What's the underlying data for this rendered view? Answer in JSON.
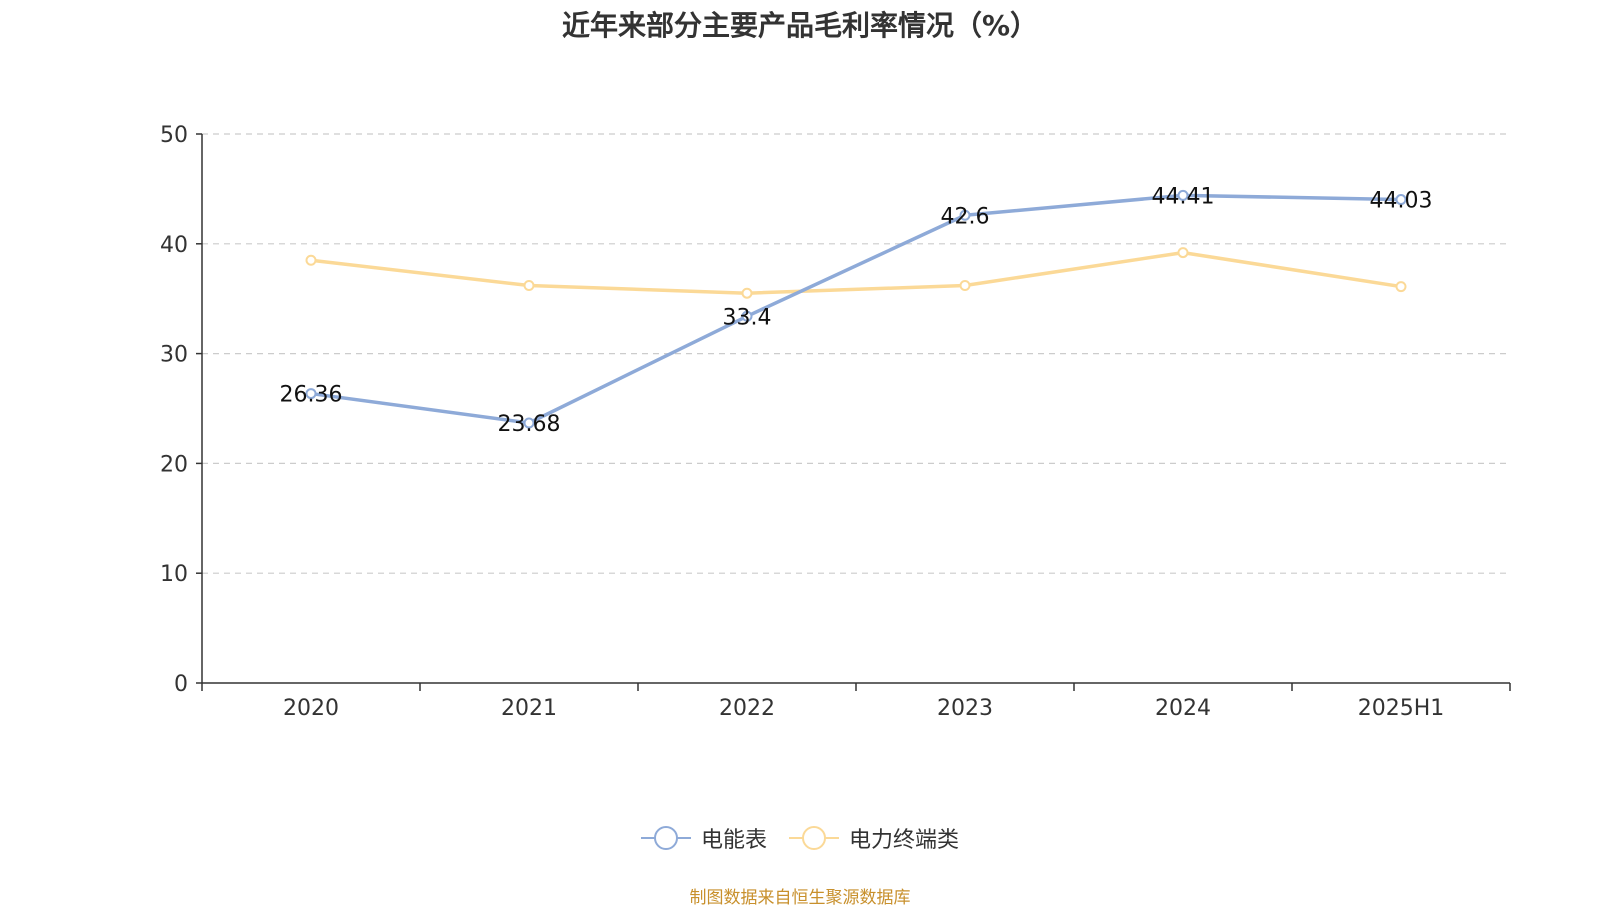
{
  "chart_data": {
    "type": "line",
    "title": "近年来部分主要产品毛利率情况（%）",
    "categories": [
      "2020",
      "2021",
      "2022",
      "2023",
      "2024",
      "2025H1"
    ],
    "series": [
      {
        "name": "电能表",
        "values": [
          26.36,
          23.68,
          33.4,
          42.6,
          44.41,
          44.03
        ],
        "color": "#8eaad8",
        "labels": [
          "26.36",
          "23.68",
          "33.4",
          "42.6",
          "44.41",
          "44.03"
        ]
      },
      {
        "name": "电力终端类",
        "values": [
          38.5,
          36.2,
          35.5,
          36.2,
          39.2,
          36.1
        ],
        "color": "#fbd997"
      }
    ],
    "ylim": [
      0,
      50
    ],
    "yticks": [
      "0",
      "10",
      "20",
      "30",
      "40",
      "50"
    ],
    "grid": true,
    "legend_position": "bottom"
  },
  "source": "制图数据来自恒生聚源数据库"
}
